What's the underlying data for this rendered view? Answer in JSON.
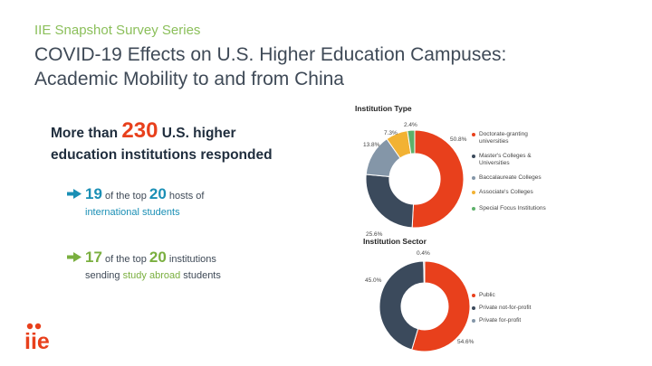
{
  "header": {
    "series_label": "IIE Snapshot Survey Series",
    "title_line1": "COVID-19 Effects on U.S. Higher Education Campuses:",
    "title_line2": "Academic Mobility to and from China"
  },
  "headline": {
    "prefix": "More than",
    "count": "230",
    "suffix": "U.S. higher",
    "line2": "education institutions responded"
  },
  "stats": [
    {
      "num": "19",
      "mid": "of the top",
      "num2": "20",
      "rest": "hosts of",
      "line2": "international students"
    },
    {
      "num": "17",
      "mid": "of the top",
      "num2": "20",
      "rest": "institutions",
      "line2a": "sending",
      "highlight": "study abroad",
      "line2b": "students"
    }
  ],
  "logo": {
    "text": "iie",
    "color": "#e8401c"
  },
  "colors": {
    "orange_red": "#e8401c",
    "navy": "#3b4a5c",
    "gray": "#8496a8",
    "gold": "#f2b233",
    "green": "#5db06a",
    "teal": "#1a8fb5",
    "lime": "#7aaf3f"
  },
  "chart_data": [
    {
      "type": "pie",
      "title": "Institution Type",
      "categories": [
        "Doctorate-granting universities",
        "Master's Colleges & Universities",
        "Baccalaureate Colleges",
        "Associate's Colleges",
        "Special Focus Institutions"
      ],
      "values": [
        50.8,
        25.6,
        13.8,
        7.3,
        2.4
      ],
      "labels": [
        "50.8%",
        "25.6%",
        "13.8%",
        "7.3%",
        "2.4%"
      ],
      "colors": [
        "#e8401c",
        "#3b4a5c",
        "#8496a8",
        "#f2b233",
        "#5db06a"
      ],
      "legend": "right"
    },
    {
      "type": "pie",
      "title": "Institution Sector",
      "categories": [
        "Public",
        "Private not-for-profit",
        "Private for-profit"
      ],
      "values": [
        54.6,
        45.0,
        0.4
      ],
      "labels": [
        "54.6%",
        "45.0%",
        "0.4%"
      ],
      "colors": [
        "#e8401c",
        "#3b4a5c",
        "#8496a8"
      ],
      "legend": "right"
    }
  ]
}
